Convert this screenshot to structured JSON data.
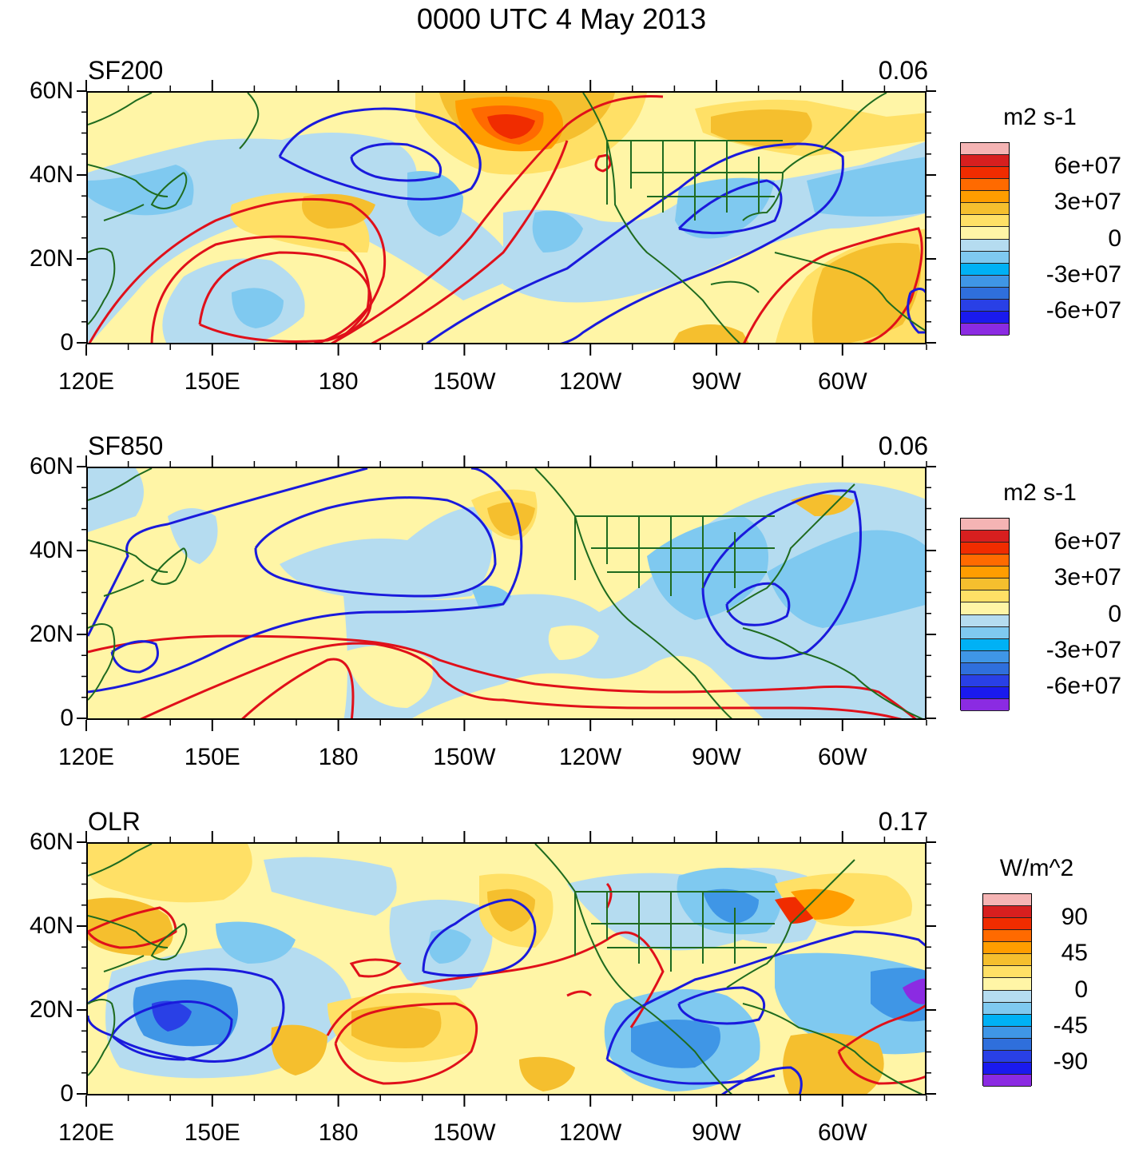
{
  "figure": {
    "title": "0000 UTC 4 May 2013"
  },
  "axes": {
    "lat_labels": [
      "60N",
      "40N",
      "20N",
      "0"
    ],
    "lon_labels": [
      "120E",
      "150E",
      "180",
      "150W",
      "120W",
      "90W",
      "60W"
    ]
  },
  "panels": [
    {
      "name": "SF200",
      "value": "0.06",
      "units": "m2 s-1",
      "colorbar_labels": [
        "6e+07",
        "3e+07",
        "0",
        "-3e+07",
        "-6e+07"
      ]
    },
    {
      "name": "SF850",
      "value": "0.06",
      "units": "m2 s-1",
      "colorbar_labels": [
        "6e+07",
        "3e+07",
        "0",
        "-3e+07",
        "-6e+07"
      ]
    },
    {
      "name": "OLR",
      "value": "0.17",
      "units": "W/m^2",
      "colorbar_labels": [
        "90",
        "45",
        "0",
        "-45",
        "-90"
      ]
    }
  ],
  "colors": {
    "scale": [
      "#f5b4b4",
      "#d71f1f",
      "#f02c00",
      "#ff6a00",
      "#ff9d00",
      "#f5bf2e",
      "#ffe066",
      "#fff5a6",
      "#b5dcf0",
      "#7fc9f0",
      "#00b1f5",
      "#3f96e6",
      "#2f6fdc",
      "#2940e6",
      "#1a1aee",
      "#8b2be2"
    ],
    "land_outline": "#1f6b1f",
    "contour_positive": "#e0101a",
    "contour_negative": "#1a1adc",
    "ocean_light_yellow": "#fff5a6",
    "ocean_light_blue": "#b5dcf0"
  }
}
